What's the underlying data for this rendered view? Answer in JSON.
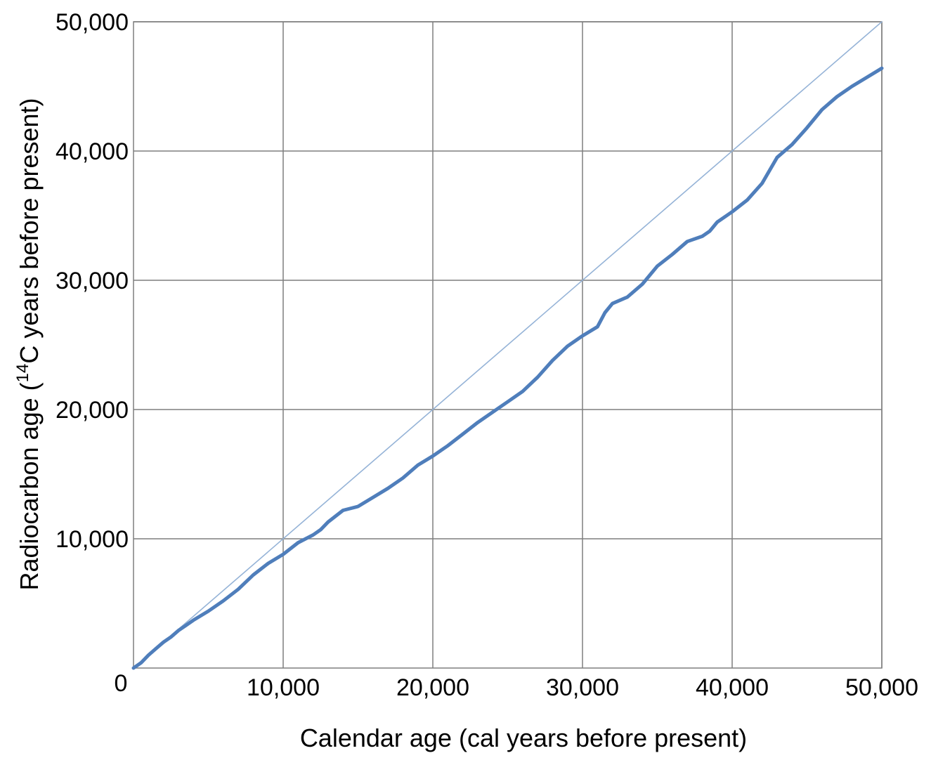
{
  "chart_data": {
    "type": "line",
    "title": "",
    "xlabel": "Calendar age (cal years before present)",
    "ylabel_parts": {
      "before": "Radiocarbon age (",
      "superscript": "14",
      "after": "C years before present)"
    },
    "xlim": [
      0,
      50000
    ],
    "ylim": [
      0,
      50000
    ],
    "x_ticks": [
      10000,
      20000,
      30000,
      40000,
      50000
    ],
    "y_ticks": [
      10000,
      20000,
      30000,
      40000,
      50000
    ],
    "x_tick_labels": [
      "10,000",
      "20,000",
      "30,000",
      "40,000",
      "50,000"
    ],
    "y_tick_labels": [
      "10,000",
      "20,000",
      "30,000",
      "40,000",
      "50,000"
    ],
    "origin_label": "0",
    "grid": true,
    "legend": false,
    "series": [
      {
        "style": "thick",
        "color": "#4f7ebb",
        "x": [
          0,
          500,
          1000,
          1500,
          2000,
          2500,
          3000,
          3500,
          4000,
          5000,
          6000,
          7000,
          8000,
          9000,
          10000,
          11000,
          12000,
          12500,
          13000,
          14000,
          15000,
          16000,
          17000,
          18000,
          19000,
          20000,
          21000,
          22000,
          23000,
          24000,
          25000,
          26000,
          27000,
          28000,
          29000,
          30000,
          31000,
          31500,
          32000,
          33000,
          34000,
          35000,
          36000,
          37000,
          38000,
          38500,
          39000,
          40000,
          41000,
          42000,
          43000,
          43500,
          44000,
          45000,
          46000,
          47000,
          48000,
          49000,
          50000
        ],
        "y": [
          0,
          400,
          1000,
          1500,
          2000,
          2400,
          2900,
          3300,
          3700,
          4400,
          5200,
          6100,
          7200,
          8100,
          8800,
          9700,
          10300,
          10700,
          11300,
          12200,
          12500,
          13200,
          13900,
          14700,
          15700,
          16400,
          17200,
          18100,
          19000,
          19800,
          20600,
          21400,
          22500,
          23800,
          24900,
          25700,
          26400,
          27500,
          28200,
          28700,
          29700,
          31100,
          32000,
          33000,
          33400,
          33800,
          34500,
          35300,
          36200,
          37500,
          39500,
          40000,
          40500,
          41800,
          43200,
          44200,
          45000,
          45700,
          46400
        ]
      },
      {
        "style": "thin",
        "color": "#95b3d7",
        "x": [
          0,
          50000
        ],
        "y": [
          0,
          50000
        ]
      }
    ]
  }
}
